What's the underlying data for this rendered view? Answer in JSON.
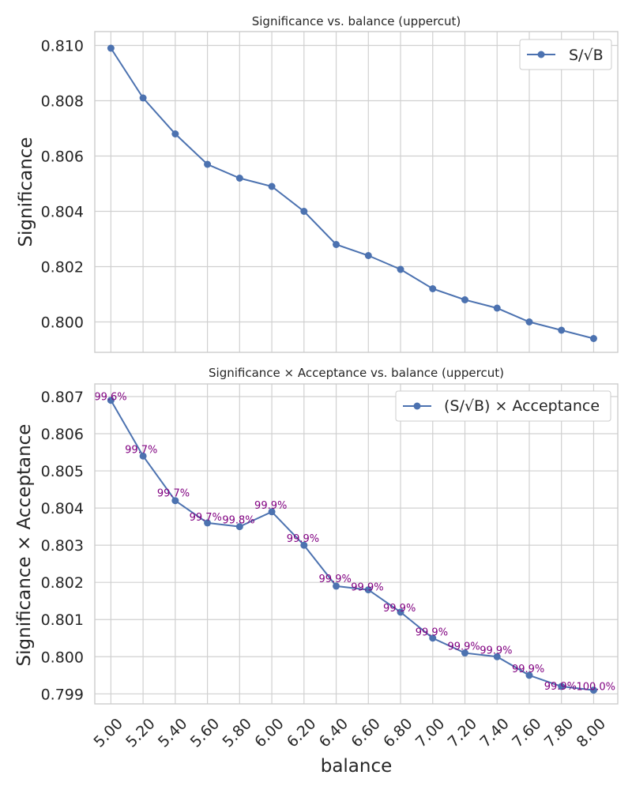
{
  "chart_data": [
    {
      "type": "line",
      "title": "Significance vs. balance (uppercut)",
      "xlabel": "",
      "ylabel": "Significance",
      "x": [
        5.0,
        5.2,
        5.4,
        5.6,
        5.8,
        6.0,
        6.2,
        6.4,
        6.6,
        6.8,
        7.0,
        7.2,
        7.4,
        7.6,
        7.8,
        8.0
      ],
      "xlim": [
        4.9,
        8.15
      ],
      "ylim": [
        0.7989,
        0.8105
      ],
      "yticks": [
        0.8,
        0.802,
        0.804,
        0.806,
        0.808,
        0.81
      ],
      "ytick_labels": [
        "0.800",
        "0.802",
        "0.804",
        "0.806",
        "0.808",
        "0.810"
      ],
      "series": [
        {
          "name": "S/√B",
          "values": [
            0.8099,
            0.8081,
            0.8068,
            0.8057,
            0.8052,
            0.8049,
            0.804,
            0.8028,
            0.8024,
            0.8019,
            0.8012,
            0.8008,
            0.8005,
            0.8,
            0.7997,
            0.7994
          ]
        }
      ],
      "legend": "top-right",
      "grid": true
    },
    {
      "type": "line",
      "title": "Significance × Acceptance vs. balance (uppercut)",
      "xlabel": "balance",
      "ylabel": "Significance × Acceptance",
      "x": [
        5.0,
        5.2,
        5.4,
        5.6,
        5.8,
        6.0,
        6.2,
        6.4,
        6.6,
        6.8,
        7.0,
        7.2,
        7.4,
        7.6,
        7.8,
        8.0
      ],
      "xticks": [
        5.0,
        5.2,
        5.4,
        5.6,
        5.8,
        6.0,
        6.2,
        6.4,
        6.6,
        6.8,
        7.0,
        7.2,
        7.4,
        7.6,
        7.8,
        8.0
      ],
      "xtick_labels": [
        "5.00",
        "5.20",
        "5.40",
        "5.60",
        "5.80",
        "6.00",
        "6.20",
        "6.40",
        "6.60",
        "6.80",
        "7.00",
        "7.20",
        "7.40",
        "7.60",
        "7.80",
        "8.00"
      ],
      "xlim": [
        4.9,
        8.15
      ],
      "ylim": [
        0.79873,
        0.80734
      ],
      "yticks": [
        0.799,
        0.8,
        0.801,
        0.802,
        0.803,
        0.804,
        0.805,
        0.806,
        0.807
      ],
      "ytick_labels": [
        "0.799",
        "0.800",
        "0.801",
        "0.802",
        "0.803",
        "0.804",
        "0.805",
        "0.806",
        "0.807"
      ],
      "series": [
        {
          "name": "(S/√B) × Acceptance",
          "values": [
            0.8069,
            0.8054,
            0.8042,
            0.8036,
            0.8035,
            0.8039,
            0.803,
            0.8019,
            0.8018,
            0.8012,
            0.8005,
            0.8001,
            0.8,
            0.7995,
            0.7992,
            0.7991
          ]
        }
      ],
      "annotations": [
        "99.6%",
        "99.7%",
        "99.7%",
        "99.7%",
        "99.8%",
        "99.9%",
        "99.9%",
        "99.9%",
        "99.9%",
        "99.9%",
        "99.9%",
        "99.9%",
        "99.9%",
        "99.9%",
        "99.9%",
        "100.0%"
      ],
      "legend": "top-right",
      "grid": true
    }
  ]
}
